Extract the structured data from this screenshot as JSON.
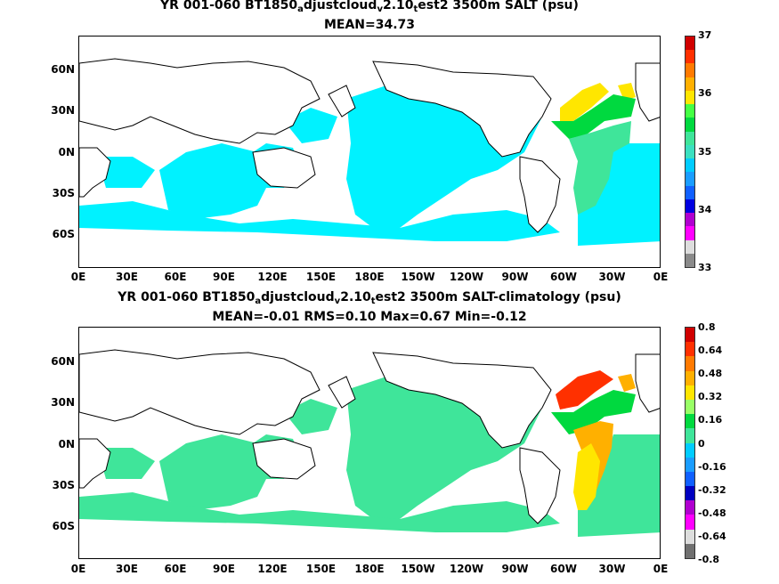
{
  "panels": [
    {
      "title_a": "YR 001-060 BT1850",
      "title_sub1": "a",
      "title_b": "djustcloud",
      "title_sub2": "v",
      "title_c": "2.10",
      "title_sub3": "t",
      "title_d": "est2 3500m SALT (psu)",
      "subtitle": "MEAN=34.73",
      "ocean_color": "#00f2ff",
      "atlantic_colors": [
        "#ffe600",
        "#00d93f",
        "#3fe59a"
      ],
      "colorbar": {
        "colors": [
          "#8a8a8a",
          "#dddddd",
          "#ff00ff",
          "#b000d0",
          "#0000e0",
          "#1060ff",
          "#1a9dff",
          "#00ccff",
          "#3be0c0",
          "#3fe59a",
          "#00d93f",
          "#44ff44",
          "#ffe600",
          "#ffb000",
          "#ff7a00",
          "#ff3000",
          "#d00000"
        ],
        "labels": [
          "37",
          "36",
          "35",
          "34",
          "33"
        ]
      }
    },
    {
      "title_a": "YR 001-060 BT1850",
      "title_sub1": "a",
      "title_b": "djustcloud",
      "title_sub2": "v",
      "title_c": "2.10",
      "title_sub3": "t",
      "title_d": "est2 3500m SALT-climatology (psu)",
      "subtitle": "MEAN=-0.01   RMS=0.10   Max=0.67   Min=-0.12",
      "ocean_color": "#3fe59a",
      "atlantic_colors": [
        "#ff3000",
        "#ffb000",
        "#ffe600",
        "#00d93f"
      ],
      "colorbar": {
        "colors": [
          "#707070",
          "#dddddd",
          "#ff00ff",
          "#b000d0",
          "#0000c0",
          "#1060ff",
          "#1a9dff",
          "#00ccff",
          "#3fe59a",
          "#00d93f",
          "#99ff66",
          "#ffe600",
          "#ffb000",
          "#ff7a00",
          "#ff3000",
          "#d00000"
        ],
        "labels": [
          "0.8",
          "0.64",
          "0.48",
          "0.32",
          "0.16",
          "0",
          "-0.16",
          "-0.32",
          "-0.48",
          "-0.64",
          "-0.8"
        ]
      }
    }
  ],
  "lat_labels": [
    "60N",
    "30N",
    "0N",
    "30S",
    "60S"
  ],
  "lon_labels": [
    "0E",
    "30E",
    "60E",
    "90E",
    "120E",
    "150E",
    "180E",
    "150W",
    "120W",
    "90W",
    "60W",
    "30W",
    "0E"
  ]
}
